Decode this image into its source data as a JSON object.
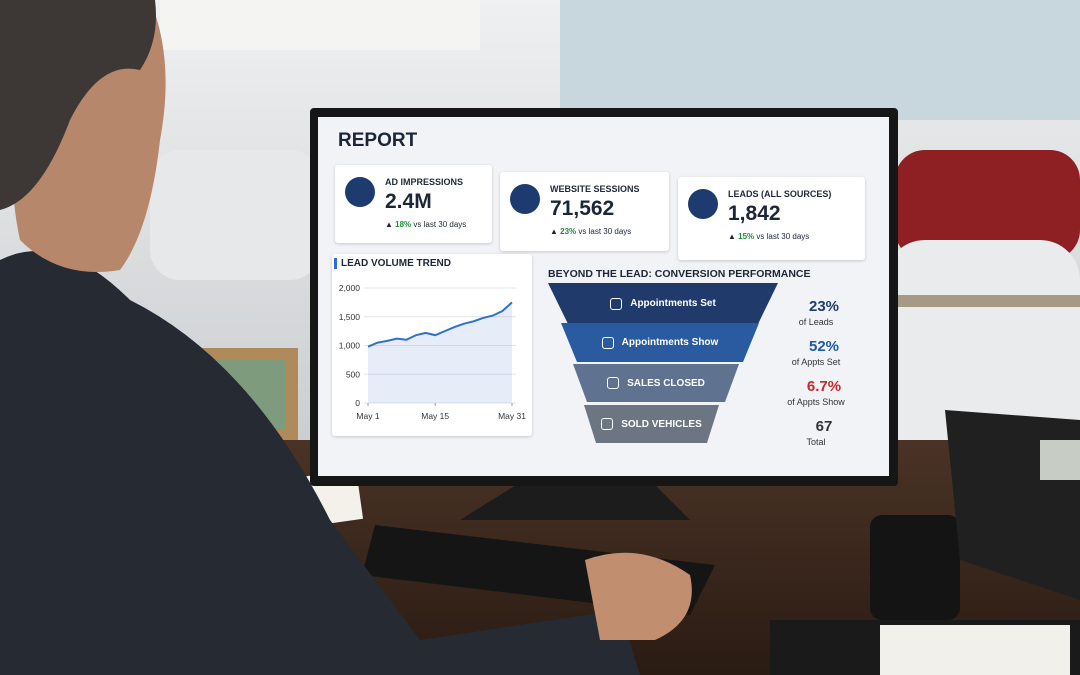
{
  "report": {
    "title": "REPORT",
    "kpis": [
      {
        "label": "AD IMPRESSIONS",
        "value": "2.4M",
        "change": "18%",
        "note": "vs last 30 days"
      },
      {
        "label": "WEBSITE SESSIONS",
        "value": "71,562",
        "change": "23%",
        "note": "vs last 30 days"
      },
      {
        "label": "LEADS (ALL SOURCES)",
        "value": "1,842",
        "change": "15%",
        "note": "vs last 30 days"
      }
    ]
  },
  "chart_data": {
    "type": "area",
    "title": "LEAD VOLUME TREND",
    "x": [
      1,
      3,
      5,
      7,
      9,
      11,
      13,
      15,
      17,
      19,
      21,
      23,
      25,
      27,
      29,
      31
    ],
    "values": [
      980,
      1050,
      1080,
      1120,
      1100,
      1180,
      1220,
      1180,
      1250,
      1320,
      1380,
      1420,
      1480,
      1520,
      1600,
      1750
    ],
    "color": "#2f6fd0",
    "xlim": [
      1,
      31
    ],
    "xticks": [
      {
        "value": 1,
        "label": "May 1"
      },
      {
        "value": 15,
        "label": "May 15"
      },
      {
        "value": 31,
        "label": "May 31"
      }
    ],
    "ylim": [
      0,
      2000
    ],
    "yticks": [
      0,
      500,
      {
        "value": 1000,
        "label": "1,000"
      },
      {
        "value": 1500,
        "label": "1,500"
      },
      {
        "value": 2000,
        "label": "2,000"
      }
    ],
    "grid": true
  },
  "funnel": {
    "title": "BEYOND THE LEAD: CONVERSION PERFORMANCE",
    "stages": [
      {
        "label": "Appointments Set",
        "value": "23%",
        "note": "of Leads"
      },
      {
        "label": "Appointments Show",
        "value": "52%",
        "note": "of Appts Set"
      },
      {
        "label": "SALES CLOSED",
        "value": "6.7%",
        "note": "of Appts Show"
      },
      {
        "label": "SOLD VEHICLES",
        "value": "67",
        "note": "Total"
      }
    ]
  }
}
